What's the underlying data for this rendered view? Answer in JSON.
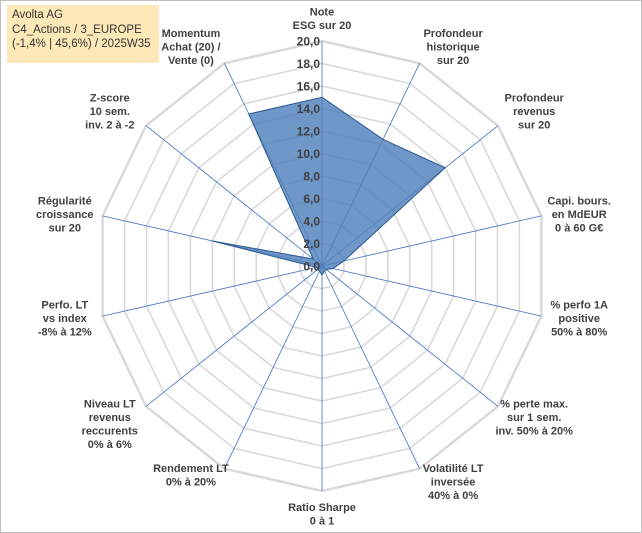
{
  "info": {
    "line1": "Avolta AG",
    "line2": "C4_Actions / 3_EUROPE",
    "line3": "(-1,4% | 45,6%) / 2025W35"
  },
  "chart_data": {
    "type": "radar",
    "title": "",
    "rmin": 0,
    "rmax": 20,
    "tick_step": 2,
    "ticks": [
      "0,0",
      "2,0",
      "4,0",
      "6,0",
      "8,0",
      "10,0",
      "12,0",
      "14,0",
      "16,0",
      "18,0",
      "20,0"
    ],
    "axes": [
      {
        "label": [
          "Note",
          "ESG sur 20"
        ],
        "value": 15
      },
      {
        "label": [
          "Profondeur",
          "historique",
          "sur 20"
        ],
        "value": 12.5
      },
      {
        "label": [
          "Profondeur",
          "revenus",
          "sur 20"
        ],
        "value": 14
      },
      {
        "label": [
          "Capi. bours.",
          "en MdEUR",
          "0 à 60 G€"
        ],
        "value": 2
      },
      {
        "label": [
          "% perfo 1A",
          "positive",
          "50% à 80%"
        ],
        "value": 1
      },
      {
        "label": [
          "% perte max.",
          "sur 1 sem.",
          "inv. 50% à 20%"
        ],
        "value": 0.5
      },
      {
        "label": [
          "Volatilité LT",
          "inversée",
          "40% à 0%"
        ],
        "value": 0.5
      },
      {
        "label": [
          "Ratio Sharpe",
          "0 à 1"
        ],
        "value": 0.8
      },
      {
        "label": [
          "Rendement LT",
          "0% à 20%"
        ],
        "value": 0.5
      },
      {
        "label": [
          "Niveau LT",
          "revenus",
          "reccurents",
          "0% à 6%"
        ],
        "value": 0.5
      },
      {
        "label": [
          "Perfo. LT",
          "vs index",
          "-8% à 12%"
        ],
        "value": 0.5
      },
      {
        "label": [
          "Régularité",
          "croissance",
          "sur 20"
        ],
        "value": 10
      },
      {
        "label": [
          "Z-score",
          "10 sem.",
          "inv. 2 à -2"
        ],
        "value": 1
      },
      {
        "label": [
          "Momentum",
          "Achat (20) /",
          "Vente (0)"
        ],
        "value": 15
      }
    ],
    "colors": {
      "fill": "#4f81bd",
      "stroke": "#2e5a91",
      "grid": "#d9d9d9",
      "spoke": "#4472c4",
      "text": "#404040"
    }
  }
}
